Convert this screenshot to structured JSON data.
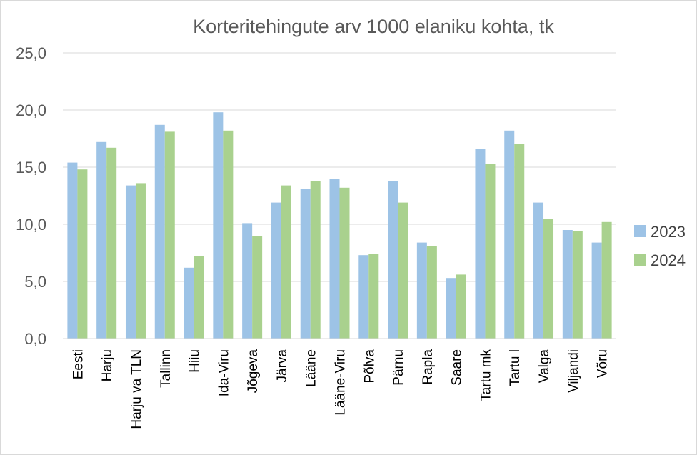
{
  "chart_data": {
    "type": "bar",
    "title": "Korteritehingute arv 1000 elaniku kohta, tk",
    "xlabel": "",
    "ylabel": "",
    "ylim": [
      0,
      25
    ],
    "yticks": [
      "0,0",
      "5,0",
      "10,0",
      "15,0",
      "20,0",
      "25,0"
    ],
    "grid": true,
    "legend_position": "right",
    "categories": [
      "Eesti",
      "Harju",
      "Harju va TLN",
      "Tallinn",
      "Hiiu",
      "Ida-Viru",
      "Jõgeva",
      "Järva",
      "Lääne",
      "Lääne-Viru",
      "Põlva",
      "Pärnu",
      "Rapla",
      "Saare",
      "Tartu mk",
      "Tartu l",
      "Valga",
      "Viljandi",
      "Võru"
    ],
    "series": [
      {
        "name": "2023",
        "color": "#9dc3e6",
        "values": [
          15.4,
          17.2,
          13.4,
          18.7,
          6.2,
          19.8,
          10.1,
          11.9,
          13.1,
          14.0,
          7.3,
          13.8,
          8.4,
          5.3,
          16.6,
          18.2,
          11.9,
          9.5,
          8.4
        ]
      },
      {
        "name": "2024",
        "color": "#a9d18e",
        "values": [
          14.8,
          16.7,
          13.6,
          18.1,
          7.2,
          18.2,
          9.0,
          13.4,
          13.8,
          13.2,
          7.4,
          11.9,
          8.1,
          5.6,
          15.3,
          17.0,
          10.5,
          9.4,
          10.2
        ]
      }
    ]
  }
}
